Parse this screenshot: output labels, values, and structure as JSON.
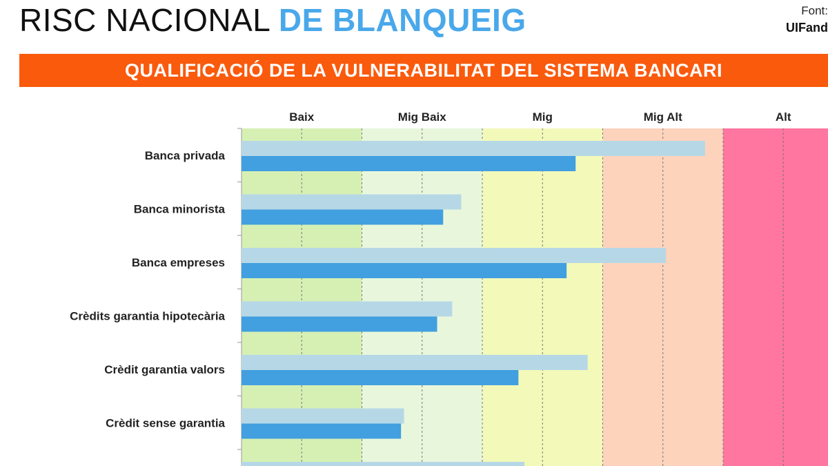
{
  "title": {
    "part1": "RISC NACIONAL ",
    "part2": "DE BLANQUEIG"
  },
  "source": {
    "label": "Font:",
    "value": "UIFand"
  },
  "chart_data": {
    "type": "bar",
    "orientation": "horizontal",
    "title": "QUALIFICACIÓ DE LA VULNERABILITAT DEL SISTEMA BANCARI",
    "bands": [
      {
        "label": "Baix",
        "color": "#d6f0b4"
      },
      {
        "label": "Mig Baix",
        "color": "#e8f7dc"
      },
      {
        "label": "Mig",
        "color": "#f3f9b9"
      },
      {
        "label": "Mig Alt",
        "color": "#fdd3bc"
      },
      {
        "label": "Alt",
        "color": "#ff76a0"
      }
    ],
    "xlim": [
      0,
      10
    ],
    "grid": true,
    "categories": [
      "Banca privada",
      "Banca minorista",
      "Banca empreses",
      "Crèdits garantia hipotecària",
      "Crèdit garantia valors",
      "Crèdit sense garantia",
      ""
    ],
    "series": [
      {
        "color": "#b6d8e6",
        "values": [
          7.7,
          3.65,
          7.05,
          3.5,
          5.75,
          2.7,
          4.7
        ]
      },
      {
        "color": "#429fe0",
        "values": [
          5.55,
          3.35,
          5.4,
          3.25,
          4.6,
          2.65,
          null
        ]
      }
    ]
  }
}
